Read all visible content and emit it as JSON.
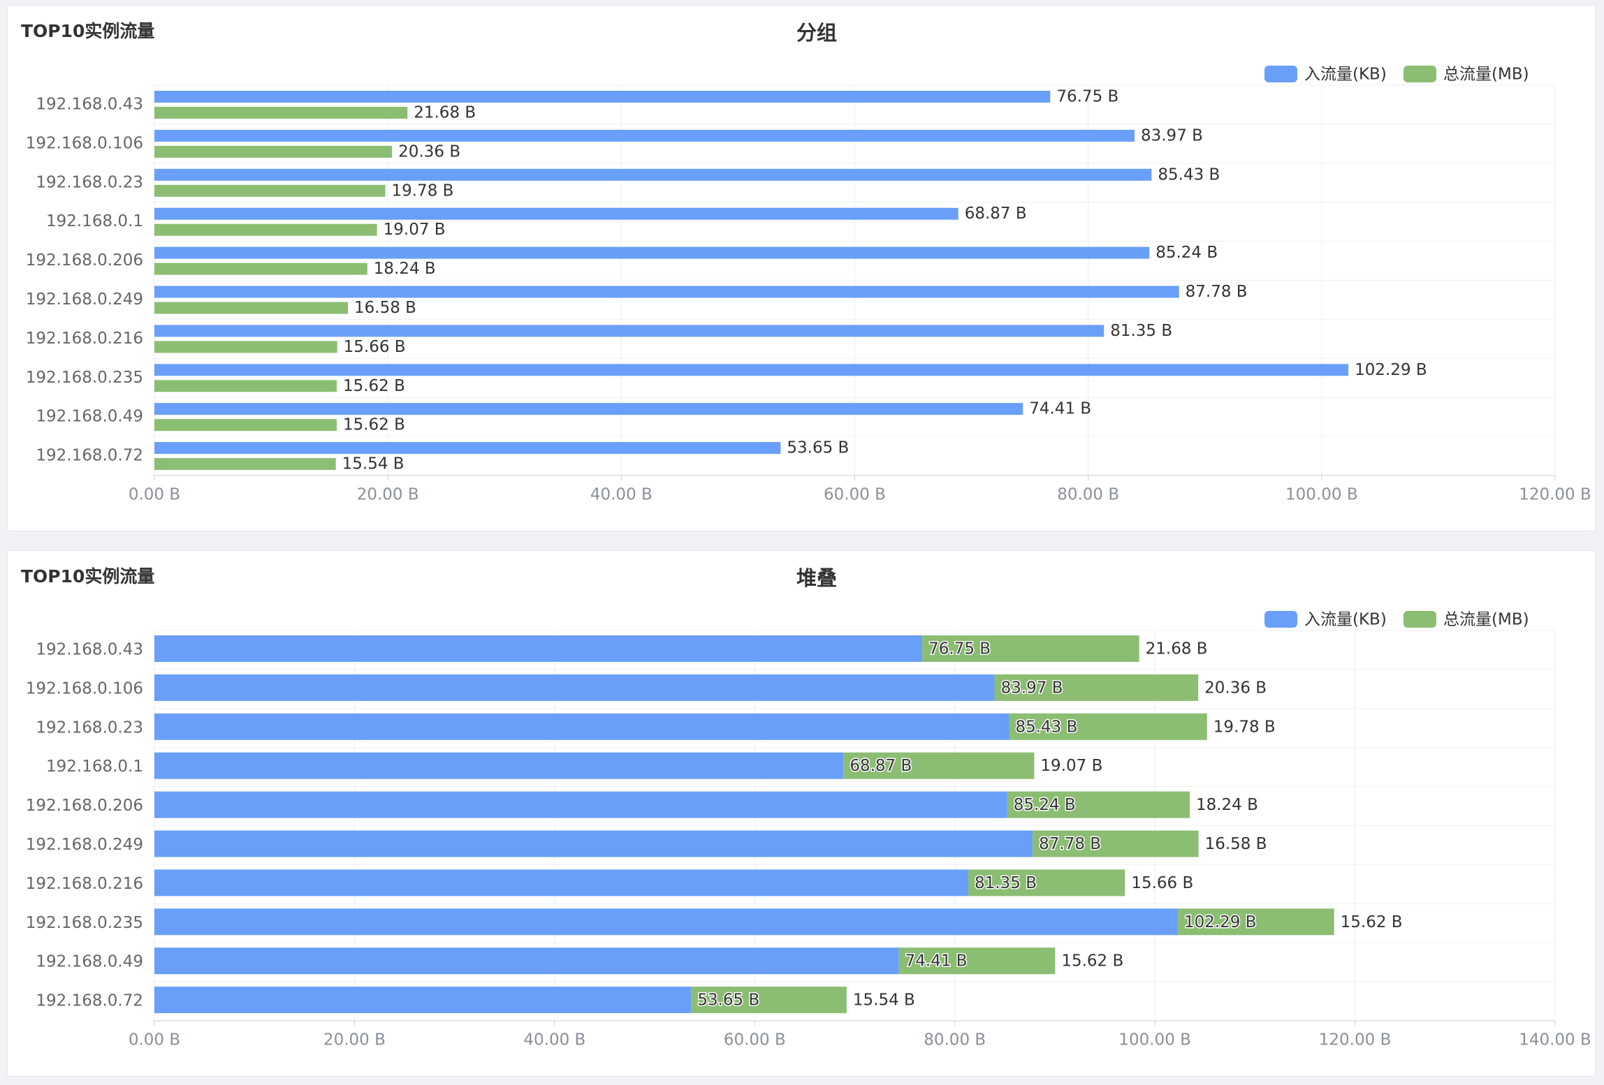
{
  "chart_data": [
    {
      "type": "bar",
      "orientation": "horizontal",
      "stacked": false,
      "panel_title": "TOP10实例流量",
      "title": "分组",
      "categories": [
        "192.168.0.43",
        "192.168.0.106",
        "192.168.0.23",
        "192.168.0.1",
        "192.168.0.206",
        "192.168.0.249",
        "192.168.0.216",
        "192.168.0.235",
        "192.168.0.49",
        "192.168.0.72"
      ],
      "series": [
        {
          "name": "入流量(KB)",
          "color": "#699ff8",
          "values": [
            76.75,
            83.97,
            85.43,
            68.87,
            85.24,
            87.78,
            81.35,
            102.29,
            74.41,
            53.65
          ],
          "value_labels": [
            "76.75 B",
            "83.97 B",
            "85.43 B",
            "68.87 B",
            "85.24 B",
            "87.78 B",
            "81.35 B",
            "102.29 B",
            "74.41 B",
            "53.65 B"
          ]
        },
        {
          "name": "总流量(MB)",
          "color": "#8bbd73",
          "values": [
            21.68,
            20.36,
            19.78,
            19.07,
            18.24,
            16.58,
            15.66,
            15.62,
            15.62,
            15.54
          ],
          "value_labels": [
            "21.68 B",
            "20.36 B",
            "19.78 B",
            "19.07 B",
            "18.24 B",
            "16.58 B",
            "15.66 B",
            "15.62 B",
            "15.62 B",
            "15.54 B"
          ]
        }
      ],
      "xlim": [
        0,
        120
      ],
      "xticks": [
        {
          "value": 0,
          "label": "0.00 B"
        },
        {
          "value": 20,
          "label": "20.00 B"
        },
        {
          "value": 40,
          "label": "40.00 B"
        },
        {
          "value": 60,
          "label": "60.00 B"
        },
        {
          "value": 80,
          "label": "80.00 B"
        },
        {
          "value": 100,
          "label": "100.00 B"
        },
        {
          "value": 120,
          "label": "120.00 B"
        }
      ],
      "grid": true
    },
    {
      "type": "bar",
      "orientation": "horizontal",
      "stacked": true,
      "panel_title": "TOP10实例流量",
      "title": "堆叠",
      "categories": [
        "192.168.0.43",
        "192.168.0.106",
        "192.168.0.23",
        "192.168.0.1",
        "192.168.0.206",
        "192.168.0.249",
        "192.168.0.216",
        "192.168.0.235",
        "192.168.0.49",
        "192.168.0.72"
      ],
      "series": [
        {
          "name": "入流量(KB)",
          "color": "#699ff8",
          "values": [
            76.75,
            83.97,
            85.43,
            68.87,
            85.24,
            87.78,
            81.35,
            102.29,
            74.41,
            53.65
          ],
          "value_labels": [
            "76.75 B",
            "83.97 B",
            "85.43 B",
            "68.87 B",
            "85.24 B",
            "87.78 B",
            "81.35 B",
            "102.29 B",
            "74.41 B",
            "53.65 B"
          ]
        },
        {
          "name": "总流量(MB)",
          "color": "#8bbd73",
          "values": [
            21.68,
            20.36,
            19.78,
            19.07,
            18.24,
            16.58,
            15.66,
            15.62,
            15.62,
            15.54
          ],
          "value_labels": [
            "21.68 B",
            "20.36 B",
            "19.78 B",
            "19.07 B",
            "18.24 B",
            "16.58 B",
            "15.66 B",
            "15.62 B",
            "15.62 B",
            "15.54 B"
          ]
        }
      ],
      "xlim": [
        0,
        140
      ],
      "xticks": [
        {
          "value": 0,
          "label": "0.00 B"
        },
        {
          "value": 20,
          "label": "20.00 B"
        },
        {
          "value": 40,
          "label": "40.00 B"
        },
        {
          "value": 60,
          "label": "60.00 B"
        },
        {
          "value": 80,
          "label": "80.00 B"
        },
        {
          "value": 100,
          "label": "100.00 B"
        },
        {
          "value": 120,
          "label": "120.00 B"
        },
        {
          "value": 140,
          "label": "140.00 B"
        }
      ],
      "grid": true
    }
  ]
}
